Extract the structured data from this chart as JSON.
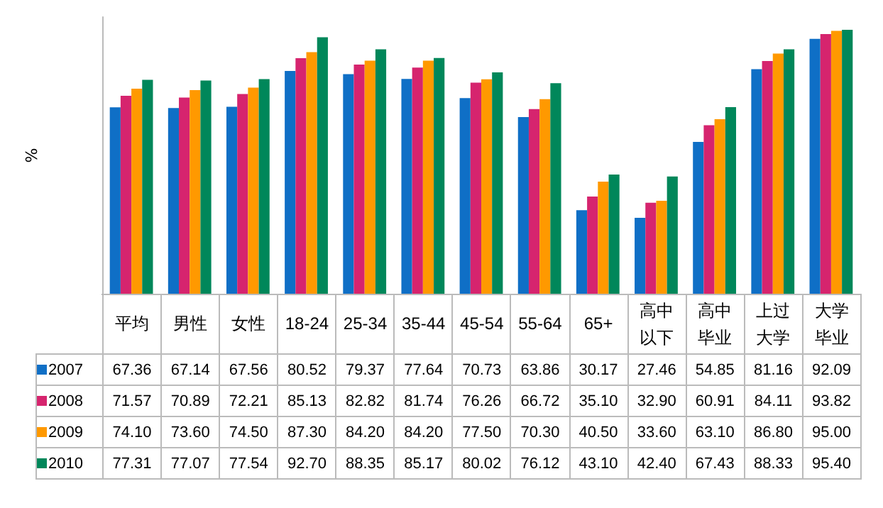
{
  "chart_data": {
    "type": "bar",
    "ylabel": "%",
    "categories": [
      "平均",
      "男性",
      "女性",
      "18-24",
      "25-34",
      "35-44",
      "45-54",
      "55-64",
      "65+",
      "高中以下",
      "高中毕业",
      "上过大学",
      "大学毕业"
    ],
    "series": [
      {
        "name": "2007",
        "color": "#0f6fc6",
        "values": [
          67.36,
          67.14,
          67.56,
          80.52,
          79.37,
          77.64,
          70.73,
          63.86,
          30.17,
          27.46,
          54.85,
          81.16,
          92.09
        ],
        "value_labels": [
          "67.36",
          "67.14",
          "67.56",
          "80.52",
          "79.37",
          "77.64",
          "70.73",
          "63.86",
          "30.17",
          "27.46",
          "54.85",
          "81.16",
          "92.09"
        ]
      },
      {
        "name": "2008",
        "color": "#d6246e",
        "values": [
          71.57,
          70.89,
          72.21,
          85.13,
          82.82,
          81.74,
          76.26,
          66.72,
          35.1,
          32.9,
          60.91,
          84.11,
          93.82
        ],
        "value_labels": [
          "71.57",
          "70.89",
          "72.21",
          "85.13",
          "82.82",
          "81.74",
          "76.26",
          "66.72",
          "35.10",
          "32.90",
          "60.91",
          "84.11",
          "93.82"
        ]
      },
      {
        "name": "2009",
        "color": "#ff9900",
        "values": [
          74.1,
          73.6,
          74.5,
          87.3,
          84.2,
          84.2,
          77.5,
          70.3,
          40.5,
          33.6,
          63.1,
          86.8,
          95.0
        ],
        "value_labels": [
          "74.10",
          "73.60",
          "74.50",
          "87.30",
          "84.20",
          "84.20",
          "77.50",
          "70.30",
          "40.50",
          "33.60",
          "63.10",
          "86.80",
          "95.00"
        ]
      },
      {
        "name": "2010",
        "color": "#00875a",
        "values": [
          77.31,
          77.07,
          77.54,
          92.7,
          88.35,
          85.17,
          80.02,
          76.12,
          43.1,
          42.4,
          67.43,
          88.33,
          95.4
        ],
        "value_labels": [
          "77.31",
          "77.07",
          "77.54",
          "92.70",
          "88.35",
          "85.17",
          "80.02",
          "76.12",
          "43.10",
          "42.40",
          "67.43",
          "88.33",
          "95.40"
        ]
      }
    ],
    "ylim": [
      0,
      100
    ],
    "tick_labels": "x",
    "grid": false,
    "legend": "bottom left"
  }
}
